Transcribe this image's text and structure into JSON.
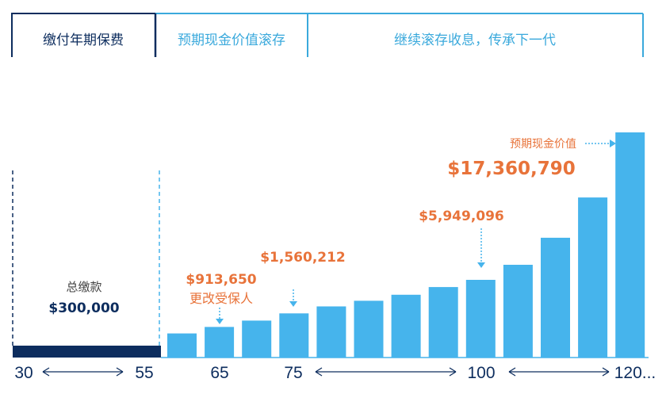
{
  "phases": [
    {
      "label": "缴付年期保费",
      "color": "#0d2d5e"
    },
    {
      "label": "预期现金价值滚存",
      "color": "#3aa9dc"
    },
    {
      "label": "继续滚存收息，传承下一代",
      "color": "#3aa9dc"
    }
  ],
  "chart_data": {
    "type": "bar",
    "title": "",
    "xlabel": "",
    "ylabel": "",
    "x_ticks": [
      "30",
      "55",
      "65",
      "75",
      "100",
      "120..."
    ],
    "premium": {
      "label": "总缴款",
      "value_label": "$300,000",
      "value": 300000,
      "start_age": 30,
      "end_age": 55
    },
    "bar_heights_relative": [
      0.107,
      0.136,
      0.164,
      0.196,
      0.227,
      0.252,
      0.279,
      0.313,
      0.345,
      0.412,
      0.532,
      0.711,
      1.0
    ],
    "annotations": [
      {
        "text": "$913,650",
        "subtext": "更改受保人",
        "bar_index": 1
      },
      {
        "text": "$1,560,212",
        "bar_index": 3
      },
      {
        "text": "$5,949,096",
        "bar_index": 8
      },
      {
        "text": "$17,360,790",
        "label": "预期现金价值",
        "bar_index": 12
      }
    ],
    "colors": {
      "bar": "#46b4ec",
      "premium": "#0d2d5e",
      "annotation": "#e8733a",
      "axis": "#0d2d5e",
      "dashed_divider": "#46b4ec"
    }
  }
}
